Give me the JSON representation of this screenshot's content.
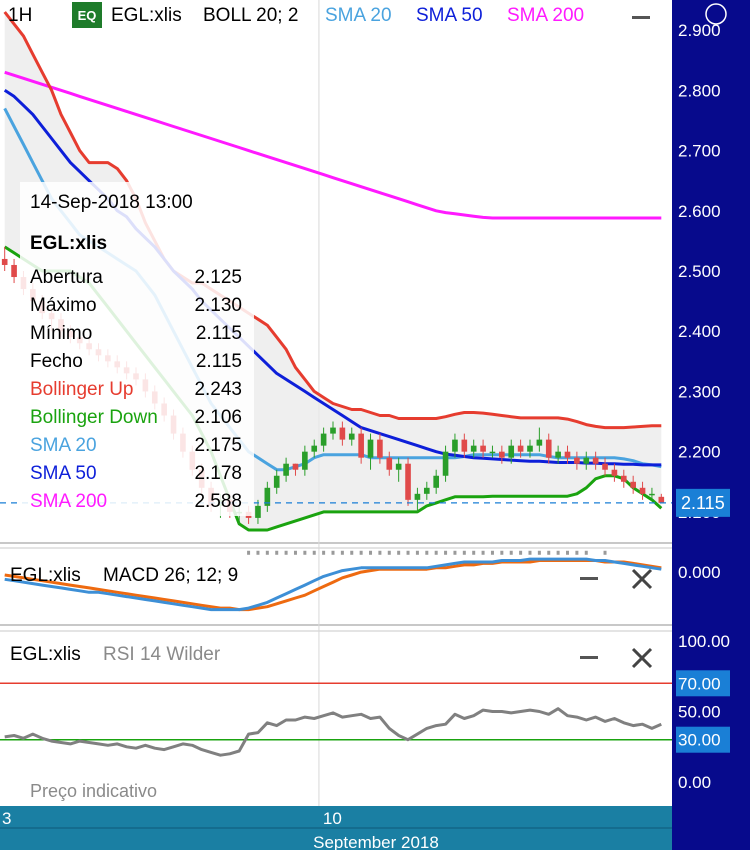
{
  "interval": "1H",
  "exchange_badge": "EQ",
  "symbol": "EGL:xlis",
  "indicators": [
    {
      "label": "BOLL 20; 2",
      "color": "#000000"
    },
    {
      "label": "SMA 20",
      "color": "#4aa3df"
    },
    {
      "label": "SMA 50",
      "color": "#0d1fd9"
    },
    {
      "label": "SMA 200",
      "color": "#ff1aff"
    }
  ],
  "colors": {
    "axis_bg": "#070a8c",
    "time_axis_bg": "#1a7fa3",
    "bollinger_up": "#e63c2f",
    "bollinger_down": "#1aa30f",
    "sma20": "#4aa3df",
    "sma50": "#0d1fd9",
    "sma200": "#ff1aff",
    "candle_up": "#2a9e2a",
    "candle_down": "#e04a4a",
    "macd": "#3d8fd6",
    "macd_signal": "#ee6a10",
    "rsi": "#808080",
    "price_tag": "#1a7fd6"
  },
  "tooltip": {
    "datetime": "14-Sep-2018 13:00",
    "symbol": "EGL:xlis",
    "rows": [
      {
        "label": "Abertura",
        "value": "2.125",
        "color": "#000000"
      },
      {
        "label": "Máximo",
        "value": "2.130",
        "color": "#000000"
      },
      {
        "label": "Mínimo",
        "value": "2.115",
        "color": "#000000"
      },
      {
        "label": "Fecho",
        "value": "2.115",
        "color": "#000000"
      },
      {
        "label": "Bollinger Up",
        "value": "2.243",
        "color": "#e63c2f"
      },
      {
        "label": "Bollinger Down",
        "value": "2.106",
        "color": "#1aa30f"
      },
      {
        "label": "SMA 20",
        "value": "2.175",
        "color": "#4aa3df"
      },
      {
        "label": "SMA 50",
        "value": "2.178",
        "color": "#0d1fd9"
      },
      {
        "label": "SMA 200",
        "value": "2.588",
        "color": "#ff1aff"
      }
    ]
  },
  "macd_panel": {
    "symbol": "EGL:xlis",
    "label": "MACD 26; 12; 9",
    "axis_label": "0.000"
  },
  "rsi_panel": {
    "symbol": "EGL:xlis",
    "label": "RSI 14 Wilder",
    "indicative": "Preço indicativo"
  },
  "time_axis": {
    "ticks": [
      {
        "label": "3",
        "index": 0
      },
      {
        "label": "10",
        "index": 34
      }
    ],
    "month_label": "September 2018"
  },
  "chart_data": {
    "type": "line",
    "price": {
      "yticks": [
        2.1,
        2.2,
        2.3,
        2.4,
        2.5,
        2.6,
        2.7,
        2.8,
        2.9
      ],
      "ytick_labels": [
        "2.100",
        "2.200",
        "2.300",
        "2.400",
        "2.500",
        "2.600",
        "2.700",
        "2.800",
        "2.900"
      ],
      "current_price": "2.115",
      "candles": [
        [
          2.52,
          2.54,
          2.5,
          2.51
        ],
        [
          2.51,
          2.52,
          2.48,
          2.49
        ],
        [
          2.49,
          2.5,
          2.46,
          2.47
        ],
        [
          2.47,
          2.48,
          2.44,
          2.45
        ],
        [
          2.45,
          2.46,
          2.42,
          2.43
        ],
        [
          2.43,
          2.44,
          2.4,
          2.42
        ],
        [
          2.42,
          2.43,
          2.39,
          2.4
        ],
        [
          2.4,
          2.41,
          2.38,
          2.39
        ],
        [
          2.39,
          2.4,
          2.37,
          2.38
        ],
        [
          2.38,
          2.39,
          2.36,
          2.37
        ],
        [
          2.37,
          2.38,
          2.35,
          2.36
        ],
        [
          2.36,
          2.37,
          2.34,
          2.35
        ],
        [
          2.35,
          2.36,
          2.33,
          2.34
        ],
        [
          2.34,
          2.35,
          2.32,
          2.33
        ],
        [
          2.33,
          2.34,
          2.31,
          2.32
        ],
        [
          2.32,
          2.33,
          2.29,
          2.3
        ],
        [
          2.3,
          2.31,
          2.27,
          2.28
        ],
        [
          2.28,
          2.29,
          2.25,
          2.26
        ],
        [
          2.26,
          2.27,
          2.22,
          2.23
        ],
        [
          2.23,
          2.24,
          2.19,
          2.2
        ],
        [
          2.2,
          2.21,
          2.16,
          2.17
        ],
        [
          2.17,
          2.18,
          2.13,
          2.14
        ],
        [
          2.14,
          2.15,
          2.1,
          2.11
        ],
        [
          2.11,
          2.13,
          2.09,
          2.12
        ],
        [
          2.12,
          2.13,
          2.09,
          2.1
        ],
        [
          2.1,
          2.11,
          2.08,
          2.1
        ],
        [
          2.1,
          2.11,
          2.08,
          2.09
        ],
        [
          2.09,
          2.12,
          2.08,
          2.11
        ],
        [
          2.11,
          2.15,
          2.1,
          2.14
        ],
        [
          2.14,
          2.17,
          2.13,
          2.16
        ],
        [
          2.16,
          2.19,
          2.15,
          2.18
        ],
        [
          2.18,
          2.18,
          2.16,
          2.17
        ],
        [
          2.17,
          2.21,
          2.16,
          2.2
        ],
        [
          2.2,
          2.22,
          2.19,
          2.21
        ],
        [
          2.21,
          2.24,
          2.2,
          2.23
        ],
        [
          2.23,
          2.25,
          2.22,
          2.24
        ],
        [
          2.24,
          2.25,
          2.21,
          2.22
        ],
        [
          2.22,
          2.24,
          2.21,
          2.23
        ],
        [
          2.23,
          2.24,
          2.18,
          2.19
        ],
        [
          2.19,
          2.23,
          2.17,
          2.22
        ],
        [
          2.22,
          2.23,
          2.18,
          2.19
        ],
        [
          2.19,
          2.2,
          2.16,
          2.17
        ],
        [
          2.17,
          2.19,
          2.15,
          2.18
        ],
        [
          2.18,
          2.19,
          2.11,
          2.12
        ],
        [
          2.12,
          2.14,
          2.1,
          2.13
        ],
        [
          2.13,
          2.15,
          2.12,
          2.14
        ],
        [
          2.14,
          2.17,
          2.13,
          2.16
        ],
        [
          2.16,
          2.21,
          2.15,
          2.2
        ],
        [
          2.2,
          2.23,
          2.19,
          2.22
        ],
        [
          2.22,
          2.23,
          2.19,
          2.2
        ],
        [
          2.2,
          2.22,
          2.19,
          2.21
        ],
        [
          2.21,
          2.22,
          2.19,
          2.2
        ],
        [
          2.2,
          2.21,
          2.19,
          2.2
        ],
        [
          2.2,
          2.21,
          2.18,
          2.19
        ],
        [
          2.19,
          2.22,
          2.18,
          2.21
        ],
        [
          2.21,
          2.22,
          2.19,
          2.2
        ],
        [
          2.2,
          2.22,
          2.19,
          2.21
        ],
        [
          2.21,
          2.24,
          2.2,
          2.22
        ],
        [
          2.22,
          2.23,
          2.18,
          2.19
        ],
        [
          2.19,
          2.21,
          2.18,
          2.2
        ],
        [
          2.2,
          2.21,
          2.18,
          2.19
        ],
        [
          2.19,
          2.2,
          2.17,
          2.18
        ],
        [
          2.18,
          2.2,
          2.17,
          2.19
        ],
        [
          2.19,
          2.2,
          2.17,
          2.18
        ],
        [
          2.18,
          2.19,
          2.16,
          2.17
        ],
        [
          2.17,
          2.18,
          2.15,
          2.16
        ],
        [
          2.16,
          2.17,
          2.14,
          2.15
        ],
        [
          2.15,
          2.16,
          2.13,
          2.14
        ],
        [
          2.14,
          2.15,
          2.12,
          2.13
        ],
        [
          2.13,
          2.14,
          2.12,
          2.13
        ],
        [
          2.125,
          2.13,
          2.115,
          2.115
        ]
      ],
      "bollinger_up": [
        2.93,
        2.91,
        2.89,
        2.86,
        2.83,
        2.8,
        2.76,
        2.73,
        2.7,
        2.68,
        2.68,
        2.68,
        2.67,
        2.65,
        2.62,
        2.58,
        2.55,
        2.52,
        2.5,
        2.49,
        2.48,
        2.48,
        2.47,
        2.46,
        2.45,
        2.44,
        2.43,
        2.42,
        2.41,
        2.39,
        2.37,
        2.34,
        2.32,
        2.3,
        2.29,
        2.28,
        2.275,
        2.27,
        2.27,
        2.265,
        2.26,
        2.26,
        2.255,
        2.255,
        2.255,
        2.255,
        2.255,
        2.258,
        2.262,
        2.265,
        2.265,
        2.264,
        2.262,
        2.26,
        2.258,
        2.256,
        2.256,
        2.256,
        2.256,
        2.256,
        2.254,
        2.25,
        2.245,
        2.242,
        2.24,
        2.24,
        2.24,
        2.241,
        2.242,
        2.243,
        2.243
      ],
      "bollinger_down": [
        2.54,
        2.53,
        2.52,
        2.51,
        2.5,
        2.5,
        2.5,
        2.5,
        2.49,
        2.48,
        2.46,
        2.44,
        2.42,
        2.4,
        2.38,
        2.36,
        2.34,
        2.32,
        2.3,
        2.28,
        2.26,
        2.23,
        2.2,
        2.16,
        2.12,
        2.08,
        2.07,
        2.07,
        2.07,
        2.075,
        2.08,
        2.085,
        2.09,
        2.095,
        2.1,
        2.1,
        2.1,
        2.1,
        2.1,
        2.1,
        2.1,
        2.1,
        2.1,
        2.1,
        2.1,
        2.11,
        2.115,
        2.12,
        2.125,
        2.125,
        2.125,
        2.125,
        2.126,
        2.126,
        2.126,
        2.126,
        2.126,
        2.126,
        2.126,
        2.126,
        2.126,
        2.13,
        2.14,
        2.155,
        2.16,
        2.16,
        2.155,
        2.14,
        2.13,
        2.12,
        2.106
      ],
      "sma20": [
        2.77,
        2.74,
        2.71,
        2.68,
        2.65,
        2.62,
        2.6,
        2.58,
        2.56,
        2.55,
        2.54,
        2.53,
        2.52,
        2.51,
        2.5,
        2.48,
        2.46,
        2.43,
        2.4,
        2.37,
        2.34,
        2.31,
        2.28,
        2.26,
        2.24,
        2.22,
        2.2,
        2.19,
        2.18,
        2.17,
        2.17,
        2.175,
        2.18,
        2.19,
        2.195,
        2.195,
        2.195,
        2.195,
        2.195,
        2.19,
        2.19,
        2.19,
        2.19,
        2.19,
        2.19,
        2.19,
        2.19,
        2.19,
        2.19,
        2.192,
        2.195,
        2.195,
        2.195,
        2.195,
        2.195,
        2.195,
        2.195,
        2.195,
        2.192,
        2.19,
        2.19,
        2.19,
        2.19,
        2.19,
        2.19,
        2.19,
        2.188,
        2.185,
        2.18,
        2.178,
        2.175
      ],
      "sma50": [
        2.8,
        2.79,
        2.775,
        2.76,
        2.74,
        2.72,
        2.7,
        2.68,
        2.665,
        2.65,
        2.635,
        2.62,
        2.6,
        2.59,
        2.57,
        2.555,
        2.54,
        2.52,
        2.5,
        2.485,
        2.47,
        2.45,
        2.435,
        2.42,
        2.405,
        2.39,
        2.375,
        2.36,
        2.345,
        2.33,
        2.32,
        2.31,
        2.3,
        2.29,
        2.28,
        2.27,
        2.26,
        2.25,
        2.24,
        2.235,
        2.23,
        2.225,
        2.22,
        2.215,
        2.21,
        2.205,
        2.2,
        2.196,
        2.194,
        2.192,
        2.19,
        2.189,
        2.188,
        2.187,
        2.186,
        2.185,
        2.184,
        2.184,
        2.183,
        2.182,
        2.182,
        2.182,
        2.181,
        2.181,
        2.18,
        2.18,
        2.179,
        2.179,
        2.178,
        2.178,
        2.178
      ],
      "sma200": [
        2.83,
        2.825,
        2.82,
        2.815,
        2.81,
        2.805,
        2.8,
        2.795,
        2.79,
        2.785,
        2.78,
        2.775,
        2.77,
        2.765,
        2.76,
        2.755,
        2.75,
        2.745,
        2.74,
        2.735,
        2.73,
        2.725,
        2.72,
        2.715,
        2.71,
        2.705,
        2.7,
        2.695,
        2.69,
        2.685,
        2.68,
        2.675,
        2.67,
        2.665,
        2.66,
        2.655,
        2.65,
        2.645,
        2.64,
        2.635,
        2.63,
        2.625,
        2.62,
        2.615,
        2.61,
        2.605,
        2.6,
        2.597,
        2.595,
        2.593,
        2.591,
        2.589,
        2.588,
        2.588,
        2.588,
        2.588,
        2.588,
        2.588,
        2.588,
        2.588,
        2.588,
        2.588,
        2.588,
        2.588,
        2.588,
        2.588,
        2.588,
        2.588,
        2.588,
        2.588,
        2.588
      ]
    },
    "macd": {
      "macd": [
        -0.009,
        -0.01,
        -0.011,
        -0.012,
        -0.013,
        -0.014,
        -0.015,
        -0.016,
        -0.017,
        -0.018,
        -0.018,
        -0.019,
        -0.02,
        -0.021,
        -0.022,
        -0.023,
        -0.024,
        -0.025,
        -0.026,
        -0.027,
        -0.028,
        -0.029,
        -0.03,
        -0.03,
        -0.03,
        -0.03,
        -0.029,
        -0.027,
        -0.025,
        -0.022,
        -0.019,
        -0.016,
        -0.013,
        -0.01,
        -0.007,
        -0.005,
        -0.003,
        -0.002,
        -0.001,
        -0.001,
        -0.001,
        -0.001,
        -0.001,
        -0.001,
        -0.001,
        -0.001,
        0.0,
        0.001,
        0.002,
        0.003,
        0.003,
        0.003,
        0.003,
        0.004,
        0.004,
        0.004,
        0.005,
        0.005,
        0.005,
        0.005,
        0.005,
        0.005,
        0.005,
        0.004,
        0.004,
        0.003,
        0.002,
        0.001,
        0.0,
        -0.001,
        -0.002
      ],
      "signal": [
        -0.006,
        -0.007,
        -0.008,
        -0.009,
        -0.01,
        -0.011,
        -0.012,
        -0.013,
        -0.014,
        -0.015,
        -0.016,
        -0.017,
        -0.018,
        -0.019,
        -0.02,
        -0.021,
        -0.022,
        -0.023,
        -0.024,
        -0.025,
        -0.026,
        -0.027,
        -0.028,
        -0.029,
        -0.029,
        -0.03,
        -0.03,
        -0.029,
        -0.028,
        -0.026,
        -0.024,
        -0.022,
        -0.02,
        -0.017,
        -0.014,
        -0.011,
        -0.008,
        -0.006,
        -0.004,
        -0.003,
        -0.002,
        -0.002,
        -0.002,
        -0.002,
        -0.002,
        -0.002,
        -0.001,
        -0.001,
        0.0,
        0.001,
        0.001,
        0.002,
        0.002,
        0.003,
        0.003,
        0.003,
        0.003,
        0.004,
        0.004,
        0.004,
        0.004,
        0.004,
        0.004,
        0.004,
        0.003,
        0.003,
        0.003,
        0.002,
        0.001,
        0.0,
        -0.001
      ]
    },
    "rsi": {
      "yticks": [
        0,
        30,
        50,
        70,
        100
      ],
      "ytick_labels": [
        "0.00",
        "30.00",
        "50.00",
        "70.00",
        "100.00"
      ],
      "levels": [
        30,
        70
      ],
      "values": [
        32,
        33,
        31,
        34,
        31,
        29,
        28,
        27,
        29,
        28,
        27,
        26,
        27,
        25,
        24,
        26,
        24,
        23,
        25,
        27,
        26,
        23,
        21,
        19,
        20,
        22,
        34,
        35,
        42,
        40,
        44,
        44,
        46,
        45,
        47,
        49,
        46,
        47,
        48,
        45,
        46,
        38,
        33,
        30,
        34,
        38,
        40,
        41,
        48,
        45,
        47,
        51,
        50,
        50,
        49,
        50,
        51,
        50,
        48,
        52,
        47,
        46,
        44,
        46,
        43,
        45,
        42,
        40,
        41,
        38,
        41
      ]
    }
  }
}
